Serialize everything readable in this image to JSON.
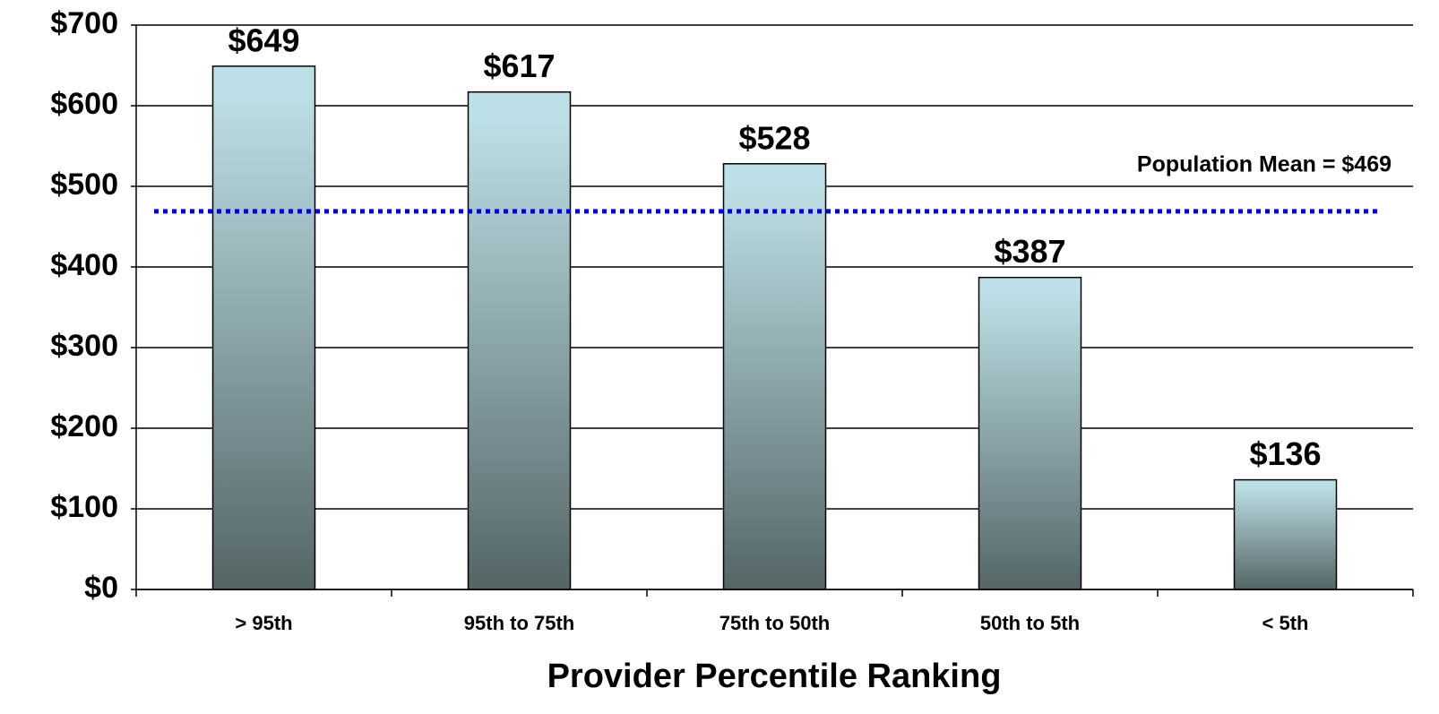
{
  "chart_data": {
    "type": "bar",
    "x_label": "Provider Percentile Ranking",
    "categories": [
      "> 95th",
      "95th to 75th",
      "75th to 50th",
      "50th to 5th",
      "< 5th"
    ],
    "values": [
      649,
      617,
      528,
      387,
      136
    ],
    "value_labels": [
      "$649",
      "$617",
      "$528",
      "$387",
      "$136"
    ],
    "color": [
      "#bde0e6",
      "#556566"
    ],
    "ylim": [
      0,
      700
    ],
    "yticks": [
      {
        "value": 0,
        "label": "$0"
      },
      {
        "value": 100,
        "label": "$100"
      },
      {
        "value": 200,
        "label": "$200"
      },
      {
        "value": 300,
        "label": "$300"
      },
      {
        "value": 400,
        "label": "$400"
      },
      {
        "value": 500,
        "label": "$500"
      },
      {
        "value": 600,
        "label": "$600"
      },
      {
        "value": 700,
        "label": "$700"
      }
    ],
    "grid": true,
    "annotations": [
      {
        "text": "Population Mean = $469",
        "value": 469,
        "color": "#0000cc"
      }
    ]
  }
}
